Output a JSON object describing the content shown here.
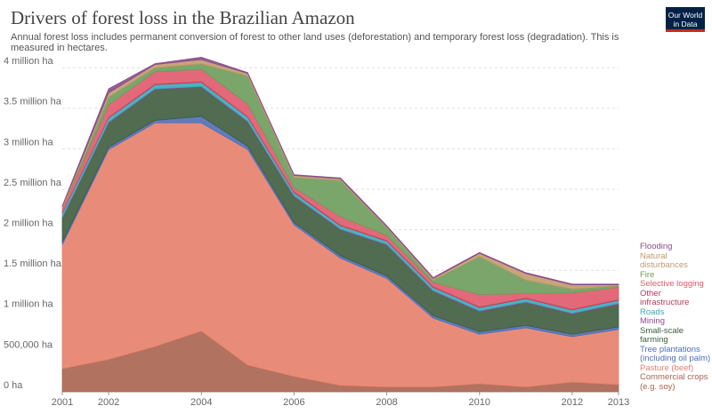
{
  "chart_data": {
    "type": "stacked-area",
    "title": "Drivers of forest loss in the Brazilian Amazon",
    "subtitle": "Annual forest loss includes permanent conversion of forest to other land uses (deforestation) and temporary forest loss (degradation). This is measured in hectares.",
    "logo": "Our World in Data",
    "x": [
      2001,
      2002,
      2003,
      2004,
      2005,
      2006,
      2007,
      2008,
      2009,
      2010,
      2011,
      2012,
      2013
    ],
    "xlim": [
      2001,
      2013
    ],
    "xticks": [
      2001,
      2002,
      2004,
      2006,
      2008,
      2010,
      2012,
      2013
    ],
    "ylim": [
      0,
      4200000
    ],
    "yticks": [
      {
        "value": 0,
        "label": "0 ha"
      },
      {
        "value": 500000,
        "label": "500,000 ha"
      },
      {
        "value": 1000000,
        "label": "1 million ha"
      },
      {
        "value": 1500000,
        "label": "1.5 million ha"
      },
      {
        "value": 2000000,
        "label": "2 million ha"
      },
      {
        "value": 2500000,
        "label": "2.5 million ha"
      },
      {
        "value": 3000000,
        "label": "3 million ha"
      },
      {
        "value": 3500000,
        "label": "3.5 million ha"
      },
      {
        "value": 4000000,
        "label": "4 million ha"
      }
    ],
    "grid": true,
    "series": [
      {
        "name": "Commercial crops (e.g. soy)",
        "color": "#a8634f",
        "values": [
          285000,
          400000,
          560000,
          750000,
          330000,
          190000,
          80000,
          60000,
          60000,
          100000,
          60000,
          120000,
          90000
        ]
      },
      {
        "name": "Pasture (beef)",
        "color": "#e6806a",
        "values": [
          1530000,
          2590000,
          2760000,
          2570000,
          2660000,
          1870000,
          1570000,
          1340000,
          850000,
          610000,
          730000,
          560000,
          680000
        ]
      },
      {
        "name": "Tree plantations (including oil palm)",
        "color": "#4c6fba",
        "values": [
          30000,
          30000,
          30000,
          80000,
          40000,
          30000,
          30000,
          30000,
          30000,
          30000,
          30000,
          30000,
          30000
        ]
      },
      {
        "name": "Small-scale farming",
        "color": "#3e5c3d",
        "values": [
          300000,
          300000,
          380000,
          360000,
          300000,
          320000,
          320000,
          380000,
          300000,
          250000,
          280000,
          250000,
          280000
        ]
      },
      {
        "name": "Mining",
        "color": "#8d4b8d",
        "values": [
          10000,
          10000,
          10000,
          10000,
          10000,
          10000,
          10000,
          10000,
          10000,
          10000,
          10000,
          10000,
          10000
        ]
      },
      {
        "name": "Roads",
        "color": "#38aaba",
        "values": [
          50000,
          50000,
          50000,
          50000,
          50000,
          40000,
          40000,
          40000,
          40000,
          40000,
          40000,
          40000,
          40000
        ]
      },
      {
        "name": "Other infrastructure",
        "color": "#b13d58",
        "values": [
          10000,
          10000,
          10000,
          10000,
          10000,
          10000,
          10000,
          10000,
          10000,
          10000,
          10000,
          10000,
          10000
        ]
      },
      {
        "name": "Selective logging",
        "color": "#e0596b",
        "values": [
          50000,
          150000,
          150000,
          150000,
          150000,
          50000,
          100000,
          60000,
          50000,
          150000,
          50000,
          200000,
          150000
        ]
      },
      {
        "name": "Fire",
        "color": "#6d9c5b",
        "values": [
          0,
          100000,
          50000,
          70000,
          350000,
          130000,
          450000,
          100000,
          30000,
          470000,
          170000,
          50000,
          20000
        ]
      },
      {
        "name": "Natural disturbances",
        "color": "#c19a6b",
        "values": [
          20000,
          50000,
          40000,
          50000,
          30000,
          20000,
          20000,
          10000,
          20000,
          40000,
          80000,
          50000,
          10000
        ]
      },
      {
        "name": "Flooding",
        "color": "#8a4b8c",
        "values": [
          10000,
          50000,
          10000,
          30000,
          10000,
          10000,
          10000,
          10000,
          10000,
          10000,
          10000,
          10000,
          10000
        ]
      }
    ]
  }
}
